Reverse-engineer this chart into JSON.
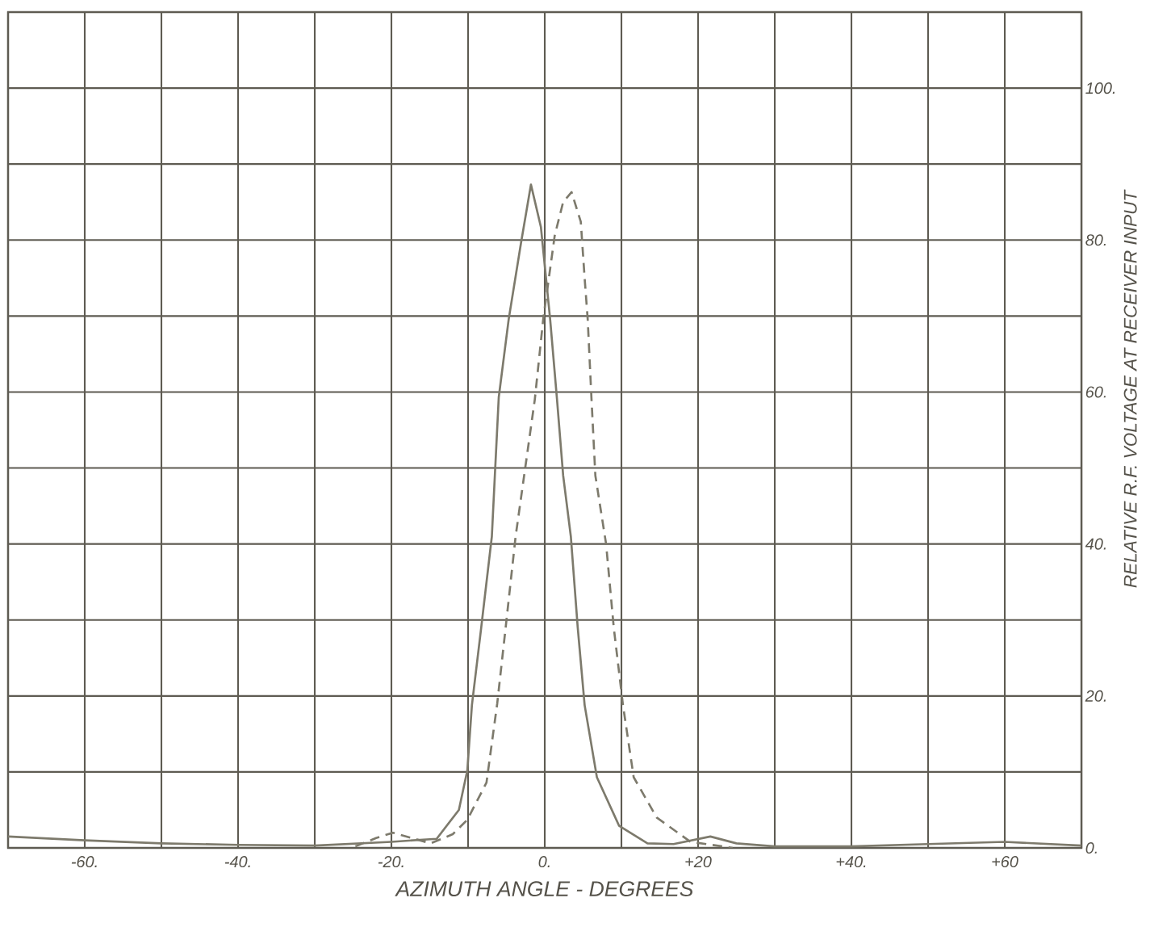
{
  "chart_data": {
    "type": "line",
    "xlabel": "AZIMUTH ANGLE - DEGREES",
    "ylabel": "RELATIVE R.F. VOLTAGE AT RECEIVER INPUT",
    "xlim": [
      -70,
      70
    ],
    "ylim": [
      0,
      110
    ],
    "xticks": [
      {
        "value": -70,
        "label": null
      },
      {
        "value": -60,
        "label": "-60."
      },
      {
        "value": -50,
        "label": null
      },
      {
        "value": -40,
        "label": "-40."
      },
      {
        "value": -30,
        "label": null
      },
      {
        "value": -20,
        "label": "-20."
      },
      {
        "value": -10,
        "label": null
      },
      {
        "value": 0,
        "label": "0."
      },
      {
        "value": 10,
        "label": null
      },
      {
        "value": 20,
        "label": "+20"
      },
      {
        "value": 30,
        "label": null
      },
      {
        "value": 40,
        "label": "+40."
      },
      {
        "value": 50,
        "label": null
      },
      {
        "value": 60,
        "label": "+60"
      },
      {
        "value": 70,
        "label": null
      }
    ],
    "yticks": [
      {
        "value": 0,
        "label": "0."
      },
      {
        "value": 10,
        "label": null
      },
      {
        "value": 20,
        "label": "20."
      },
      {
        "value": 30,
        "label": null
      },
      {
        "value": 40,
        "label": "40."
      },
      {
        "value": 50,
        "label": null
      },
      {
        "value": 60,
        "label": "60."
      },
      {
        "value": 70,
        "label": null
      },
      {
        "value": 80,
        "label": "80."
      },
      {
        "value": 90,
        "label": null
      },
      {
        "value": 100,
        "label": "100."
      },
      {
        "value": 110,
        "label": null
      }
    ],
    "grid": true,
    "marker": "none",
    "series": [
      {
        "color": "#7d7a6c",
        "line_style": "solid",
        "x": [
          -70,
          -60,
          -50,
          -40,
          -30,
          -20,
          -14.1,
          -11.2,
          -10.1,
          -9.5,
          -8.3,
          -6.9,
          -6.5,
          -6.0,
          -4.7,
          -3.1,
          -1.8,
          -0.5,
          0.7,
          1.6,
          2.4,
          3.4,
          4.3,
          5.2,
          6.8,
          9.7,
          13.4,
          16.8,
          21.6,
          25,
          30,
          40,
          50,
          60,
          70
        ],
        "values": [
          1.5,
          1,
          0.6,
          0.4,
          0.3,
          0.8,
          1.2,
          5,
          10.2,
          18.8,
          28.9,
          41,
          49.2,
          59.3,
          69.6,
          79.6,
          87.3,
          81.7,
          69.6,
          59,
          49,
          41,
          29,
          18.8,
          9.3,
          2.9,
          0.6,
          0.5,
          1.5,
          0.6,
          0.2,
          0.2,
          0.5,
          0.8,
          0.3
        ]
      },
      {
        "color": "#7d7a6c",
        "line_style": "dashed",
        "x": [
          -24.7,
          -22,
          -19.8,
          -17,
          -14.9,
          -12,
          -10.1,
          -7.6,
          -6.2,
          -5.1,
          -3.8,
          -1.3,
          -0.2,
          1.3,
          2.4,
          3.5,
          4.7,
          5.2,
          5.6,
          6.1,
          6.6,
          8,
          9,
          10.2,
          11.6,
          14.6,
          19,
          24.5
        ],
        "values": [
          0.2,
          1.3,
          2,
          1.2,
          0.6,
          1.8,
          3.7,
          8.6,
          19,
          29,
          41,
          59,
          69.6,
          80.6,
          85,
          86.3,
          82.4,
          75,
          69.6,
          59,
          49,
          40,
          29,
          18.8,
          9.3,
          4,
          0.8,
          0
        ]
      }
    ]
  }
}
